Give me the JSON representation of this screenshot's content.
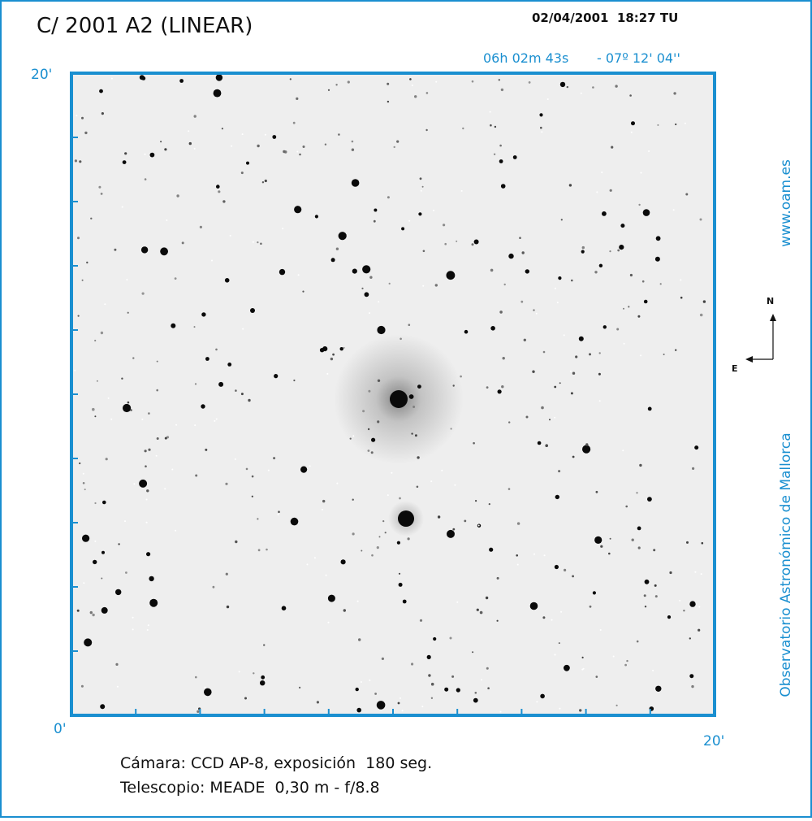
{
  "header": {
    "title": "C/ 2001 A2 (LINEAR)",
    "datetime": "02/04/2001  18:27 TU",
    "ra": "06h 02m 43s",
    "dec": "- 07º 12' 04''"
  },
  "frame": {
    "top_left_label": "20'",
    "origin_label": "0'",
    "bottom_right_label": "20'"
  },
  "sidebar": {
    "website": "www.oam.es",
    "observatory": "Observatorio Astronómico de Mallorca"
  },
  "compass": {
    "north": "N",
    "east": "E"
  },
  "caption": {
    "line1": "Cámara: CCD AP-8, exposición  180 seg.",
    "line2": "Telescopio: MEADE  0,30 m - f/8.8"
  }
}
